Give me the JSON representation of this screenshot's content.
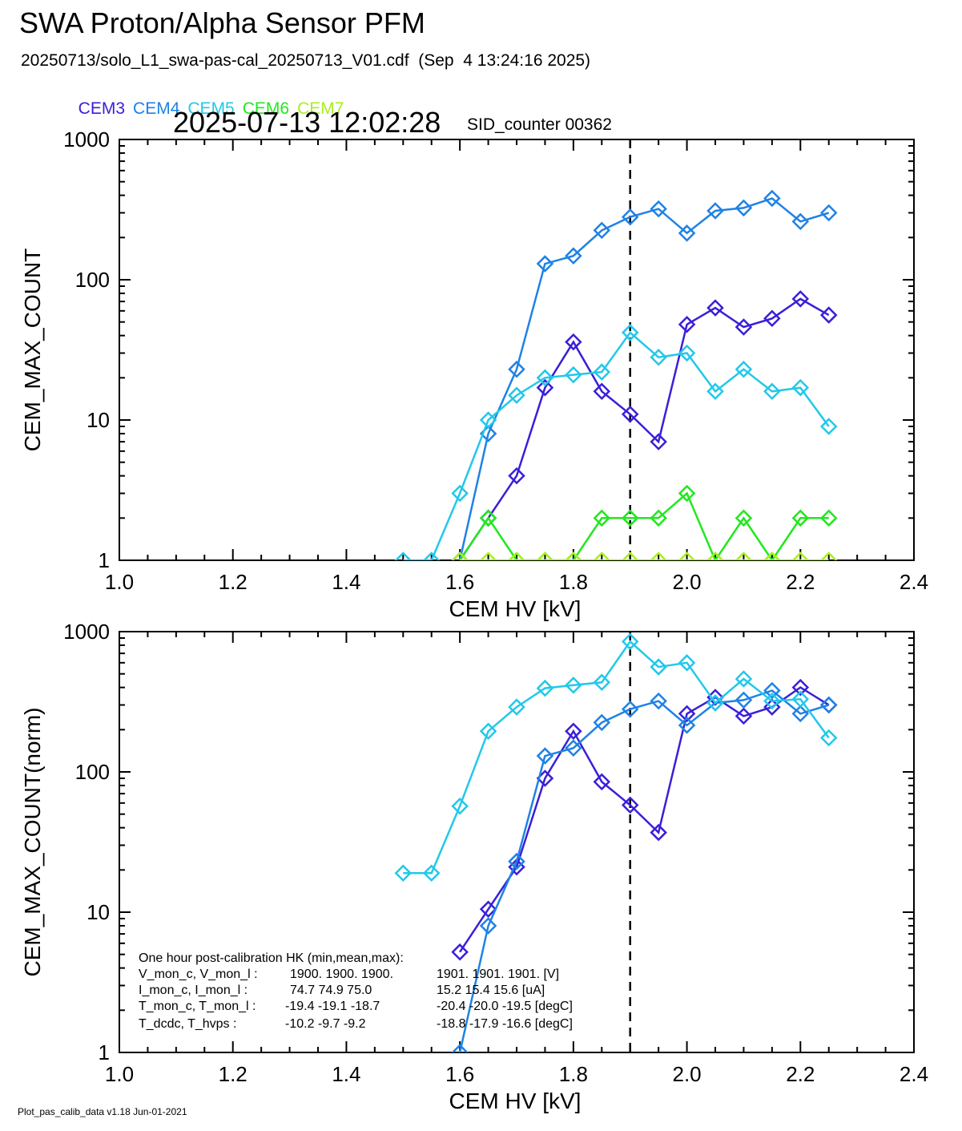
{
  "title": "SWA Proton/Alpha Sensor PFM",
  "subtitle": "20250713/solo_L1_swa-pas-cal_20250713_V01.cdf  (Sep  4 13:24:16 2025)",
  "timestamp": "2025-07-13 12:02:28",
  "sid_counter": "SID_counter 00362",
  "footer": "Plot_pas_calib_data v1.18 Jun-01-2021",
  "legend": [
    {
      "name": "CEM3",
      "color": "#3a1fd8"
    },
    {
      "name": "CEM4",
      "color": "#1e82e6"
    },
    {
      "name": "CEM5",
      "color": "#22c8ea"
    },
    {
      "name": "CEM6",
      "color": "#22e81e"
    },
    {
      "name": "CEM7",
      "color": "#a8f01c"
    }
  ],
  "hk": {
    "heading": "One hour post-calibration HK (min,mean,max):",
    "rows": [
      {
        "label": "V_mon_c, V_mon_l :",
        "c": "1900.  1900.  1900.",
        "l": "1901.  1901.  1901.  [V]"
      },
      {
        "label": "I_mon_c,  I_mon_l :",
        "c": "  74.7   74.9   75.0",
        "l": "15.2   15.4   15.6  [uA]"
      },
      {
        "label": "T_mon_c, T_mon_l :",
        "c": " -19.4  -19.1  -18.7",
        "l": "-20.4  -20.0  -19.5  [degC]"
      },
      {
        "label": "T_dcdc,    T_hvps :",
        "c": " -10.2   -9.7   -9.2",
        "l": "-18.8  -17.9  -16.6  [degC]"
      }
    ]
  },
  "chart_data": [
    {
      "type": "line",
      "ylabel": "CEM_MAX_COUNT",
      "xlabel": "CEM HV [kV]",
      "xlim": [
        1.0,
        2.4
      ],
      "ylim": [
        1,
        1000
      ],
      "ylog": true,
      "xticks": [
        "1.0",
        "1.2",
        "1.4",
        "1.6",
        "1.8",
        "2.0",
        "2.2",
        "2.4"
      ],
      "yticks": [
        "1",
        "10",
        "100",
        "1000"
      ],
      "vline_x": 1.9,
      "series": [
        {
          "name": "CEM3",
          "color": "#3a1fd8",
          "x": [
            1.6,
            1.65,
            1.7,
            1.75,
            1.8,
            1.85,
            1.9,
            1.95,
            2.0,
            2.05,
            2.1,
            2.15,
            2.2,
            2.25
          ],
          "y": [
            1,
            2,
            4,
            17,
            36,
            16,
            11,
            7,
            48,
            63,
            46,
            53,
            73,
            56
          ]
        },
        {
          "name": "CEM4",
          "color": "#1e82e6",
          "x": [
            1.6,
            1.65,
            1.7,
            1.75,
            1.8,
            1.85,
            1.9,
            1.95,
            2.0,
            2.05,
            2.1,
            2.15,
            2.2,
            2.25
          ],
          "y": [
            1,
            8,
            23,
            130,
            148,
            225,
            280,
            320,
            215,
            310,
            325,
            380,
            260,
            300
          ]
        },
        {
          "name": "CEM5",
          "color": "#22c8ea",
          "x": [
            1.5,
            1.55,
            1.6,
            1.65,
            1.7,
            1.75,
            1.8,
            1.85,
            1.9,
            1.95,
            2.0,
            2.05,
            2.1,
            2.15,
            2.2,
            2.25
          ],
          "y": [
            1,
            1,
            3,
            10,
            15,
            20,
            21,
            22,
            42,
            28,
            30,
            16,
            23,
            16,
            17,
            9
          ]
        },
        {
          "name": "CEM6",
          "color": "#22e81e",
          "x": [
            1.6,
            1.65,
            1.7,
            1.75,
            1.8,
            1.85,
            1.9,
            1.95,
            2.0,
            2.05,
            2.1,
            2.15,
            2.2,
            2.25
          ],
          "y": [
            1,
            2,
            1,
            1,
            1,
            2,
            2,
            2,
            3,
            1,
            2,
            1,
            2,
            2
          ]
        },
        {
          "name": "CEM7",
          "color": "#a8f01c",
          "x": [
            1.6,
            1.65,
            1.7,
            1.75,
            1.8,
            1.85,
            1.9,
            1.95,
            2.0,
            2.05,
            2.1,
            2.15,
            2.2,
            2.25
          ],
          "y": [
            1,
            1,
            1,
            1,
            1,
            1,
            1,
            1,
            1,
            1,
            1,
            1,
            1,
            1
          ]
        }
      ]
    },
    {
      "type": "line",
      "ylabel": "CEM_MAX_COUNT(norm)",
      "xlabel": "CEM HV [kV]",
      "xlim": [
        1.0,
        2.4
      ],
      "ylim": [
        1,
        1000
      ],
      "ylog": true,
      "xticks": [
        "1.0",
        "1.2",
        "1.4",
        "1.6",
        "1.8",
        "2.0",
        "2.2",
        "2.4"
      ],
      "yticks": [
        "1",
        "10",
        "100",
        "1000"
      ],
      "vline_x": 1.9,
      "series": [
        {
          "name": "CEM3",
          "color": "#3a1fd8",
          "x": [
            1.6,
            1.65,
            1.7,
            1.75,
            1.8,
            1.85,
            1.9,
            1.95,
            2.0,
            2.05,
            2.1,
            2.15,
            2.2,
            2.25
          ],
          "y": [
            5.2,
            10.5,
            21,
            90,
            195,
            85,
            58,
            37,
            260,
            340,
            250,
            290,
            400,
            300
          ]
        },
        {
          "name": "CEM4",
          "color": "#1e82e6",
          "x": [
            1.6,
            1.65,
            1.7,
            1.75,
            1.8,
            1.85,
            1.9,
            1.95,
            2.0,
            2.05,
            2.1,
            2.15,
            2.2,
            2.25
          ],
          "y": [
            1,
            8,
            23,
            130,
            148,
            225,
            280,
            320,
            215,
            310,
            325,
            380,
            260,
            300
          ]
        },
        {
          "name": "CEM5",
          "color": "#22c8ea",
          "x": [
            1.5,
            1.55,
            1.6,
            1.65,
            1.7,
            1.75,
            1.8,
            1.85,
            1.9,
            1.95,
            2.0,
            2.05,
            2.1,
            2.15,
            2.2,
            2.25
          ],
          "y": [
            19,
            19,
            57,
            195,
            290,
            395,
            415,
            435,
            850,
            560,
            600,
            310,
            460,
            320,
            330,
            175
          ]
        }
      ]
    }
  ]
}
